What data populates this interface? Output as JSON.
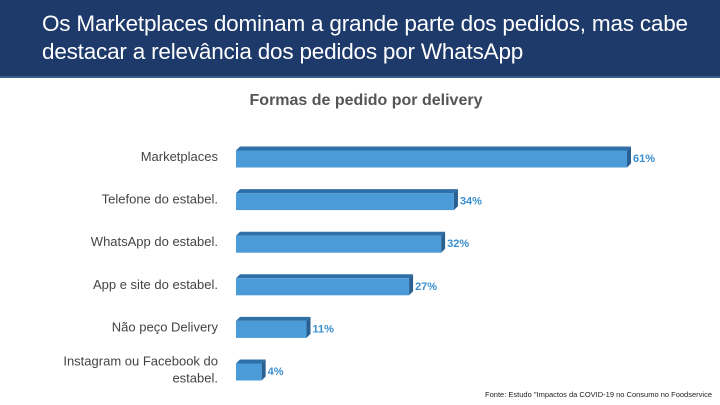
{
  "header": {
    "title": "Os Marketplaces dominam a grande parte dos pedidos, mas cabe destacar a relevância dos pedidos por WhatsApp"
  },
  "colors": {
    "header_bg": "#1e3a6b",
    "bar": "#4a9bd8",
    "bar_top": "#2f6fa8",
    "value_label": "#3a8fd0"
  },
  "chart_data": {
    "type": "bar",
    "orientation": "horizontal",
    "title": "Formas de pedido por delivery",
    "categories": [
      [
        "Marketplaces"
      ],
      [
        "Telefone do estabel."
      ],
      [
        "WhatsApp do estabel."
      ],
      [
        "App e site do estabel."
      ],
      [
        "Não peço Delivery"
      ],
      [
        "Instagram ou Facebook do",
        "estabel."
      ]
    ],
    "values": [
      61,
      34,
      32,
      27,
      11,
      4
    ],
    "value_labels": [
      "61%",
      "34%",
      "32%",
      "27%",
      "11%",
      "4%"
    ],
    "unit": "%",
    "xlabel": "",
    "ylabel": "",
    "grid": false
  },
  "footer": {
    "source": "Fonte: Estudo \"Impactos da COVID-19 no Consumo no Foodservice"
  }
}
